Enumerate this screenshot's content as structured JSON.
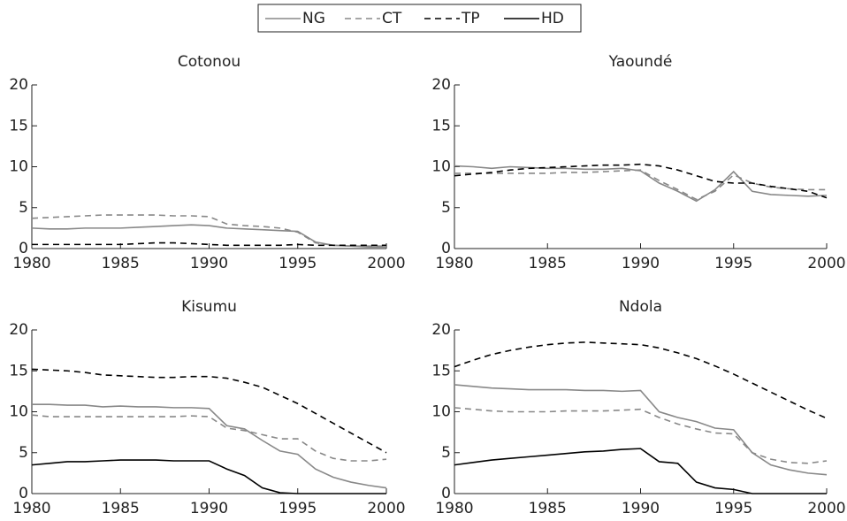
{
  "chart_data": [
    {
      "type": "line",
      "title": "Cotonou",
      "xlim": [
        1980,
        2000
      ],
      "xticks": [
        1980,
        1985,
        1990,
        1995,
        2000
      ],
      "ylim": [
        0,
        20
      ],
      "yticks": [
        0,
        5,
        10,
        15,
        20
      ],
      "x": [
        1980,
        1981,
        1982,
        1983,
        1984,
        1985,
        1986,
        1987,
        1988,
        1989,
        1990,
        1991,
        1992,
        1993,
        1994,
        1995,
        1996,
        1997,
        1998,
        1999,
        2000
      ],
      "series": [
        {
          "name": "NG",
          "color": "#888888",
          "dashed": false,
          "values": [
            2.5,
            2.4,
            2.4,
            2.5,
            2.5,
            2.5,
            2.6,
            2.7,
            2.8,
            2.9,
            2.8,
            2.5,
            2.4,
            2.3,
            2.2,
            2.1,
            0.8,
            0.4,
            0.3,
            0.2,
            0.2
          ]
        },
        {
          "name": "CT",
          "color": "#888888",
          "dashed": true,
          "values": [
            3.7,
            3.8,
            3.9,
            4.0,
            4.1,
            4.1,
            4.1,
            4.1,
            4.0,
            4.0,
            3.9,
            3.0,
            2.8,
            2.7,
            2.5,
            2.0,
            0.7,
            0.4,
            0.3,
            0.3,
            0.3
          ]
        },
        {
          "name": "TP",
          "color": "#000000",
          "dashed": true,
          "values": [
            0.5,
            0.5,
            0.5,
            0.5,
            0.5,
            0.5,
            0.6,
            0.7,
            0.7,
            0.6,
            0.5,
            0.4,
            0.4,
            0.4,
            0.4,
            0.5,
            0.4,
            0.4,
            0.4,
            0.4,
            0.4
          ]
        }
      ]
    },
    {
      "type": "line",
      "title": "Yaoundé",
      "xlim": [
        1980,
        2000
      ],
      "xticks": [
        1980,
        1985,
        1990,
        1995,
        2000
      ],
      "ylim": [
        0,
        20
      ],
      "yticks": [
        0,
        5,
        10,
        15,
        20
      ],
      "x": [
        1980,
        1981,
        1982,
        1983,
        1984,
        1985,
        1986,
        1987,
        1988,
        1989,
        1990,
        1991,
        1992,
        1993,
        1994,
        1995,
        1996,
        1997,
        1998,
        1999,
        2000
      ],
      "series": [
        {
          "name": "NG",
          "color": "#888888",
          "dashed": false,
          "values": [
            10.1,
            10.0,
            9.8,
            10.0,
            9.9,
            9.8,
            9.8,
            9.7,
            9.7,
            9.8,
            9.5,
            8.0,
            7.0,
            5.8,
            7.2,
            9.4,
            7.0,
            6.6,
            6.5,
            6.4,
            6.5
          ]
        },
        {
          "name": "CT",
          "color": "#888888",
          "dashed": true,
          "values": [
            9.2,
            9.2,
            9.2,
            9.2,
            9.2,
            9.2,
            9.3,
            9.3,
            9.4,
            9.5,
            9.6,
            8.3,
            7.2,
            6.0,
            7.0,
            9.0,
            8.0,
            7.5,
            7.3,
            7.2,
            7.2
          ]
        },
        {
          "name": "TP",
          "color": "#000000",
          "dashed": true,
          "values": [
            8.9,
            9.1,
            9.3,
            9.6,
            9.8,
            9.9,
            10.0,
            10.1,
            10.2,
            10.2,
            10.3,
            10.1,
            9.6,
            8.9,
            8.2,
            8.0,
            8.0,
            7.6,
            7.3,
            7.0,
            6.2
          ]
        }
      ]
    },
    {
      "type": "line",
      "title": "Kisumu",
      "xlim": [
        1980,
        2000
      ],
      "xticks": [
        1980,
        1985,
        1990,
        1995,
        2000
      ],
      "ylim": [
        0,
        20
      ],
      "yticks": [
        0,
        5,
        10,
        15,
        20
      ],
      "x": [
        1980,
        1981,
        1982,
        1983,
        1984,
        1985,
        1986,
        1987,
        1988,
        1989,
        1990,
        1991,
        1992,
        1993,
        1994,
        1995,
        1996,
        1997,
        1998,
        1999,
        2000
      ],
      "series": [
        {
          "name": "NG",
          "color": "#888888",
          "dashed": false,
          "values": [
            10.9,
            10.9,
            10.8,
            10.8,
            10.6,
            10.7,
            10.6,
            10.6,
            10.5,
            10.5,
            10.4,
            8.3,
            7.9,
            6.5,
            5.2,
            4.8,
            3.0,
            2.0,
            1.4,
            1.0,
            0.7
          ]
        },
        {
          "name": "CT",
          "color": "#888888",
          "dashed": true,
          "values": [
            9.6,
            9.4,
            9.4,
            9.4,
            9.4,
            9.4,
            9.4,
            9.4,
            9.4,
            9.5,
            9.4,
            8.0,
            7.7,
            7.2,
            6.7,
            6.7,
            5.2,
            4.3,
            4.0,
            4.0,
            4.2
          ]
        },
        {
          "name": "TP",
          "color": "#000000",
          "dashed": true,
          "values": [
            15.2,
            15.1,
            15.0,
            14.8,
            14.5,
            14.4,
            14.3,
            14.2,
            14.2,
            14.3,
            14.3,
            14.1,
            13.6,
            13.0,
            12.0,
            11.0,
            9.8,
            8.6,
            7.4,
            6.2,
            5.0
          ]
        },
        {
          "name": "HD",
          "color": "#000000",
          "dashed": false,
          "values": [
            3.5,
            3.7,
            3.9,
            3.9,
            4.0,
            4.1,
            4.1,
            4.1,
            4.0,
            4.0,
            4.0,
            3.0,
            2.2,
            0.7,
            0.1,
            0,
            0,
            0,
            0,
            0,
            0
          ]
        }
      ]
    },
    {
      "type": "line",
      "title": "Ndola",
      "xlim": [
        1980,
        2000
      ],
      "xticks": [
        1980,
        1985,
        1990,
        1995,
        2000
      ],
      "ylim": [
        0,
        20
      ],
      "yticks": [
        0,
        5,
        10,
        15,
        20
      ],
      "x": [
        1980,
        1981,
        1982,
        1983,
        1984,
        1985,
        1986,
        1987,
        1988,
        1989,
        1990,
        1991,
        1992,
        1993,
        1994,
        1995,
        1996,
        1997,
        1998,
        1999,
        2000
      ],
      "series": [
        {
          "name": "NG",
          "color": "#888888",
          "dashed": false,
          "values": [
            13.3,
            13.1,
            12.9,
            12.8,
            12.7,
            12.7,
            12.7,
            12.6,
            12.6,
            12.5,
            12.6,
            10.0,
            9.3,
            8.8,
            8.0,
            7.8,
            5.0,
            3.5,
            2.9,
            2.5,
            2.3
          ]
        },
        {
          "name": "CT",
          "color": "#888888",
          "dashed": true,
          "values": [
            10.5,
            10.3,
            10.1,
            10.0,
            10.0,
            10.0,
            10.1,
            10.1,
            10.1,
            10.2,
            10.3,
            9.3,
            8.5,
            7.9,
            7.4,
            7.3,
            5.0,
            4.2,
            3.8,
            3.7,
            4.0
          ]
        },
        {
          "name": "TP",
          "color": "#000000",
          "dashed": true,
          "values": [
            15.5,
            16.3,
            17.0,
            17.5,
            17.9,
            18.2,
            18.4,
            18.5,
            18.4,
            18.3,
            18.2,
            17.8,
            17.2,
            16.5,
            15.6,
            14.6,
            13.5,
            12.4,
            11.3,
            10.2,
            9.2
          ]
        },
        {
          "name": "HD",
          "color": "#000000",
          "dashed": false,
          "values": [
            3.5,
            3.8,
            4.1,
            4.3,
            4.5,
            4.7,
            4.9,
            5.1,
            5.2,
            5.4,
            5.5,
            3.9,
            3.7,
            1.4,
            0.7,
            0.5,
            0,
            0,
            0,
            0,
            0
          ]
        }
      ]
    }
  ]
}
